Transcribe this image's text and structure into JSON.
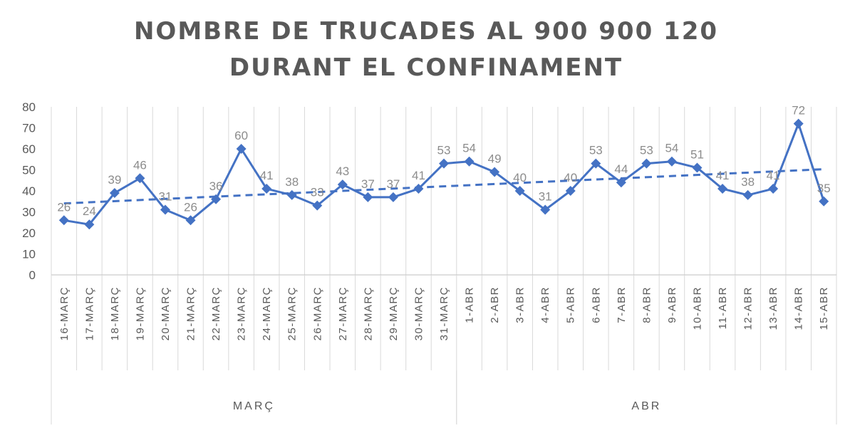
{
  "chart_data": {
    "type": "line",
    "title_line1": "NOMBRE DE TRUCADES AL 900 900 120",
    "title_line2": "DURANT EL CONFINAMENT",
    "categories": [
      "16-MARÇ",
      "17-MARÇ",
      "18-MARÇ",
      "19-MARÇ",
      "20-MARÇ",
      "21-MARÇ",
      "22-MARÇ",
      "23-MARÇ",
      "24-MARÇ",
      "25-MARÇ",
      "26-MARÇ",
      "27-MARÇ",
      "28-MARÇ",
      "29-MARÇ",
      "30-MARÇ",
      "31-MARÇ",
      "1-ABR",
      "2-ABR",
      "3-ABR",
      "4-ABR",
      "5-ABR",
      "6-ABR",
      "7-ABR",
      "8-ABR",
      "9-ABR",
      "10-ABR",
      "11-ABR",
      "12-ABR",
      "13-ABR",
      "14-ABR",
      "15-ABR"
    ],
    "groups": [
      {
        "label": "MARÇ",
        "start": 0,
        "end": 15
      },
      {
        "label": "ABR",
        "start": 16,
        "end": 30
      }
    ],
    "values": [
      26,
      24,
      39,
      46,
      31,
      26,
      36,
      60,
      41,
      38,
      33,
      43,
      37,
      37,
      41,
      53,
      54,
      49,
      40,
      31,
      40,
      53,
      44,
      53,
      54,
      51,
      41,
      38,
      41,
      72,
      35
    ],
    "ylim": [
      0,
      80
    ],
    "yticks": [
      0,
      10,
      20,
      30,
      40,
      50,
      60,
      70,
      80
    ],
    "trendline": "linear, dashed",
    "grid": "vertical",
    "series_color": "#4472c4",
    "label_color": "#8c8c8c"
  }
}
